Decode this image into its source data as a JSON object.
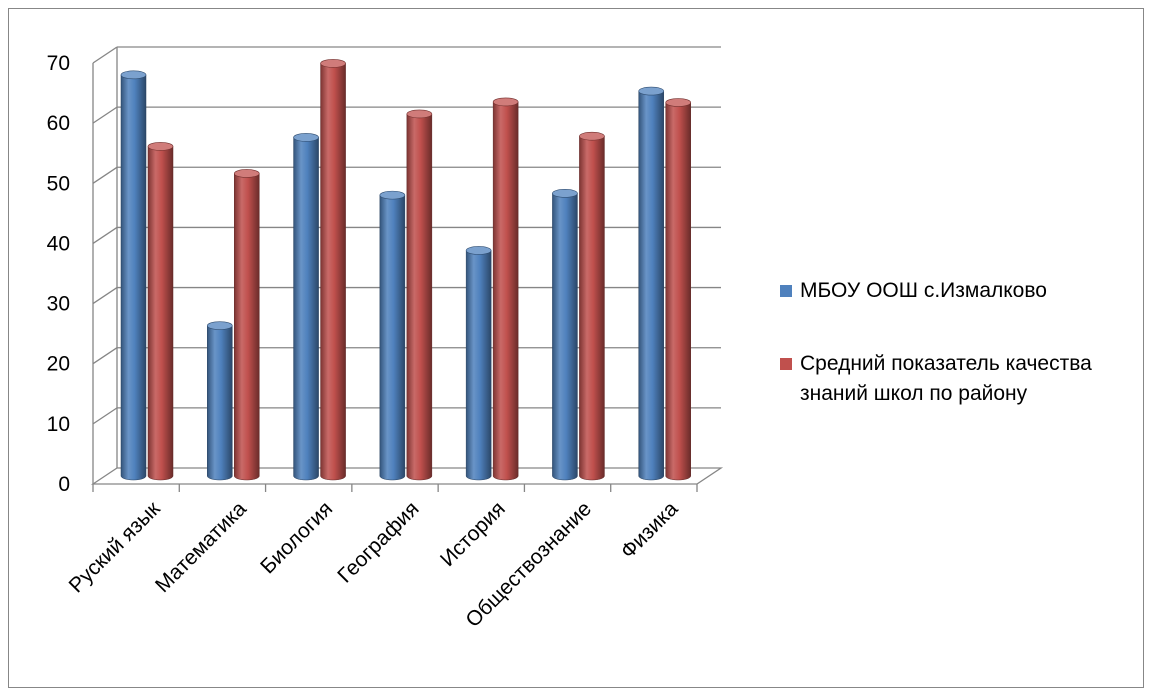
{
  "chart_data": {
    "type": "bar",
    "title": "",
    "xlabel": "",
    "ylabel": "",
    "ylim": [
      0,
      70
    ],
    "yticks": [
      0,
      10,
      20,
      30,
      40,
      50,
      60,
      70
    ],
    "categories": [
      "Руский язык",
      "Математика",
      "Биология",
      "География",
      "История",
      "Обществознание",
      "Физика"
    ],
    "series": [
      {
        "name": "МБОУ ООШ с.Измалково",
        "color": "#4F81BD",
        "values": [
          66.7,
          25,
          56.3,
          46.7,
          37.5,
          47,
          64
        ]
      },
      {
        "name": "Средний показатель качества знаний школ по району",
        "color": "#C0504D",
        "values": [
          54.8,
          50.3,
          68.6,
          60.2,
          62.2,
          56.5,
          62.1
        ]
      }
    ],
    "grid": true,
    "legend_position": "right",
    "style": "3d-cylinder"
  }
}
